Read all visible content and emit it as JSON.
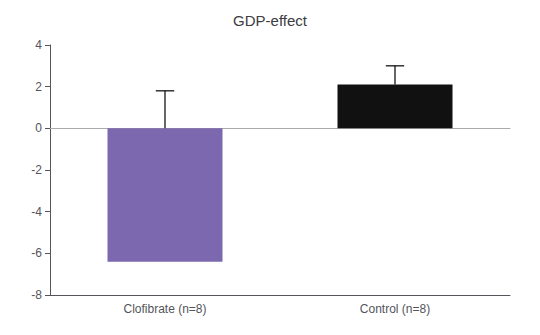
{
  "chart_data": {
    "type": "bar",
    "title": "GDP-effect",
    "categories": [
      "Clofibrate (n=8)",
      "Control (n=8)"
    ],
    "values": [
      -6.4,
      2.1
    ],
    "error_low": [
      0.0,
      2.1
    ],
    "error_high": [
      1.8,
      3.0
    ],
    "colors": [
      "#7b68ae",
      "#111111"
    ],
    "ylim": [
      -8,
      4
    ],
    "yticks": [
      -8,
      -6,
      -4,
      -2,
      0,
      2,
      4
    ],
    "grid": false
  }
}
